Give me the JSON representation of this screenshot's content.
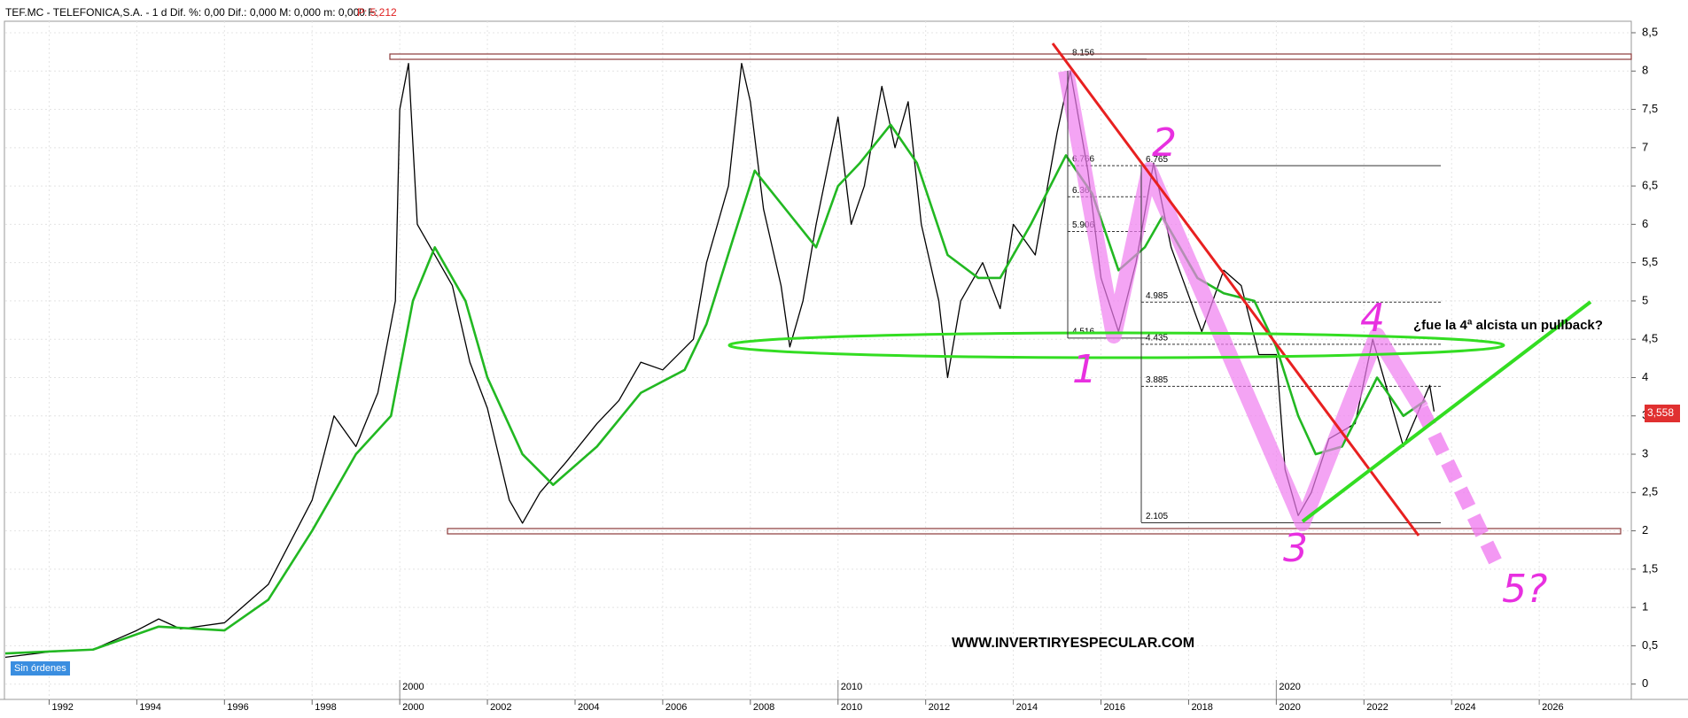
{
  "header": {
    "text": "TEF.MC - TELEFONICA,S.A. -  1 d  Dif. %: 0,00  Dif.: 0,000  M: 0,000  m: 0,000  F:",
    "price": "P: 5,212"
  },
  "orders": "Sin órdenes",
  "last_price_label": "3,558",
  "chart_data": {
    "type": "line",
    "xlim": [
      1991.0,
      2028.1
    ],
    "ylim": [
      -0.2,
      8.65
    ],
    "xticks": [
      1992,
      1994,
      1996,
      1998,
      2000,
      2002,
      2004,
      2006,
      2008,
      2010,
      2012,
      2014,
      2016,
      2018,
      2020,
      2022,
      2024,
      2026
    ],
    "decade_ticks": [
      2000,
      2010,
      2020
    ],
    "yticks": [
      0,
      {
        "value": 0.5,
        "label": "0,5"
      },
      1,
      {
        "value": 1.5,
        "label": "1,5"
      },
      2,
      {
        "value": 2.5,
        "label": "2,5"
      },
      3,
      {
        "value": 3.5,
        "label": "3,5"
      },
      4,
      {
        "value": 4.5,
        "label": "4,5"
      },
      5,
      {
        "value": 5.5,
        "label": "5,5"
      },
      6,
      {
        "value": 6.5,
        "label": "6,5"
      },
      7,
      {
        "value": 7.5,
        "label": "7,5"
      },
      8,
      {
        "value": 8.5,
        "label": "8,5"
      }
    ],
    "series": [
      {
        "name": "TEF.MC",
        "color": "#000000",
        "x": [
          1991.0,
          1992,
          1993,
          1994,
          1994.5,
          1995,
          1996,
          1997,
          1998,
          1998.5,
          1999,
          1999.5,
          1999.9,
          2000.0,
          2000.2,
          2000.4,
          2000.8,
          2001.2,
          2001.6,
          2002,
          2002.5,
          2002.8,
          2003.2,
          2003.8,
          2004.5,
          2005,
          2005.5,
          2006,
          2006.7,
          2007,
          2007.5,
          2007.8,
          2008.0,
          2008.3,
          2008.7,
          2008.9,
          2009.2,
          2009.5,
          2010,
          2010.3,
          2010.6,
          2011,
          2011.3,
          2011.6,
          2011.9,
          2012.3,
          2012.5,
          2012.8,
          2013.3,
          2013.7,
          2014,
          2014.5,
          2015,
          2015.3,
          2015.7,
          2016,
          2016.4,
          2016.8,
          2017.2,
          2017.6,
          2018.3,
          2018.8,
          2019.2,
          2019.6,
          2020,
          2020.2,
          2020.5,
          2020.8,
          2021.2,
          2021.8,
          2022.2,
          2022.6,
          2022.9,
          2023.2,
          2023.5,
          2023.6
        ],
        "values": [
          0.35,
          0.42,
          0.45,
          0.7,
          0.85,
          0.72,
          0.8,
          1.3,
          2.4,
          3.5,
          3.1,
          3.8,
          5.0,
          7.5,
          8.1,
          6.0,
          5.6,
          5.2,
          4.2,
          3.6,
          2.4,
          2.1,
          2.5,
          2.9,
          3.4,
          3.7,
          4.2,
          4.1,
          4.5,
          5.5,
          6.5,
          8.1,
          7.6,
          6.2,
          5.2,
          4.4,
          5.0,
          6.0,
          7.4,
          6.0,
          6.5,
          7.8,
          7.0,
          7.6,
          6.0,
          5.0,
          4.0,
          5.0,
          5.5,
          4.9,
          6.0,
          5.6,
          7.2,
          8.0,
          6.7,
          5.3,
          4.6,
          5.5,
          6.8,
          5.7,
          4.6,
          5.4,
          5.2,
          4.3,
          4.3,
          2.8,
          2.2,
          2.5,
          3.2,
          3.4,
          4.5,
          3.7,
          3.1,
          3.5,
          3.9,
          3.558
        ]
      },
      {
        "name": "MA",
        "color": "#22b822",
        "x": [
          1991,
          1993,
          1994.5,
          1996,
          1997,
          1998,
          1999,
          1999.8,
          2000.3,
          2000.8,
          2001.5,
          2002,
          2002.8,
          2003.5,
          2004.5,
          2005.5,
          2006.5,
          2007,
          2007.6,
          2008.1,
          2008.8,
          2009.5,
          2010,
          2010.5,
          2011.2,
          2011.8,
          2012.5,
          2013.2,
          2013.7,
          2014.4,
          2015.2,
          2015.8,
          2016.4,
          2017.0,
          2017.4,
          2018.2,
          2018.8,
          2019.5,
          2020.0,
          2020.5,
          2020.9,
          2021.5,
          2022.3,
          2022.9,
          2023.4
        ],
        "values": [
          0.4,
          0.45,
          0.75,
          0.7,
          1.1,
          2.0,
          3.0,
          3.5,
          5.0,
          5.7,
          5.0,
          4.0,
          3.0,
          2.6,
          3.1,
          3.8,
          4.1,
          4.7,
          5.8,
          6.7,
          6.2,
          5.7,
          6.5,
          6.8,
          7.3,
          6.8,
          5.6,
          5.3,
          5.3,
          6.0,
          6.9,
          6.4,
          5.4,
          5.7,
          6.1,
          5.3,
          5.1,
          5.0,
          4.4,
          3.5,
          3.0,
          3.1,
          4.0,
          3.5,
          3.7
        ]
      }
    ],
    "fib_levels": [
      [
        {
          "value": 8.156,
          "label": "8.156"
        },
        {
          "value": 6.766,
          "label": "6.766"
        },
        {
          "value": 6.36,
          "label": "6.36"
        },
        {
          "value": 5.906,
          "label": "5.906"
        },
        {
          "value": 4.516,
          "label": "4.516"
        }
      ],
      [
        {
          "value": 6.765,
          "label": "6.765"
        },
        {
          "value": 4.985,
          "label": "4.985"
        },
        {
          "value": 4.435,
          "label": "4.435"
        },
        {
          "value": 3.885,
          "label": "3.885"
        },
        {
          "value": 2.105,
          "label": "2.105"
        }
      ]
    ],
    "annotations": {
      "wave1": "1",
      "wave2": "2",
      "wave3": "3",
      "wave4": "4",
      "wave5": "5?",
      "question": "¿fue la 4ª alcista un pullback?",
      "website": "WWW.INVERTIRYESPECULAR.COM"
    }
  }
}
